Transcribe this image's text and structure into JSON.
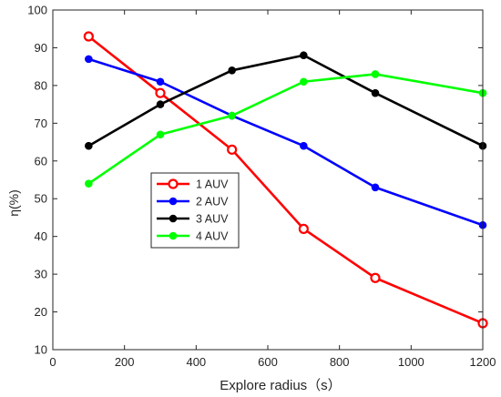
{
  "chart_data": {
    "type": "line",
    "title": "",
    "xlabel": "Explore radius（s）",
    "ylabel": "η(%)",
    "xlim": [
      0,
      1200
    ],
    "ylim": [
      10,
      100
    ],
    "xticks": [
      0,
      200,
      400,
      600,
      800,
      1000,
      1200
    ],
    "yticks": [
      10,
      20,
      30,
      40,
      50,
      60,
      70,
      80,
      90,
      100
    ],
    "grid": false,
    "legend_position": "middle-left",
    "x": [
      100,
      300,
      500,
      700,
      900,
      1200
    ],
    "series": [
      {
        "name": "1 AUV",
        "color": "#ff0000",
        "marker": "open-circle",
        "values": [
          93,
          78,
          63,
          42,
          29,
          17
        ]
      },
      {
        "name": "2 AUV",
        "color": "#0000ff",
        "marker": "filled-circle",
        "values": [
          87,
          81,
          72,
          64,
          53,
          43
        ]
      },
      {
        "name": "3 AUV",
        "color": "#000000",
        "marker": "filled-circle",
        "values": [
          64,
          75,
          84,
          88,
          78,
          64
        ]
      },
      {
        "name": "4 AUV",
        "color": "#00ff00",
        "marker": "filled-circle",
        "values": [
          54,
          67,
          72,
          81,
          83,
          78
        ]
      }
    ]
  }
}
